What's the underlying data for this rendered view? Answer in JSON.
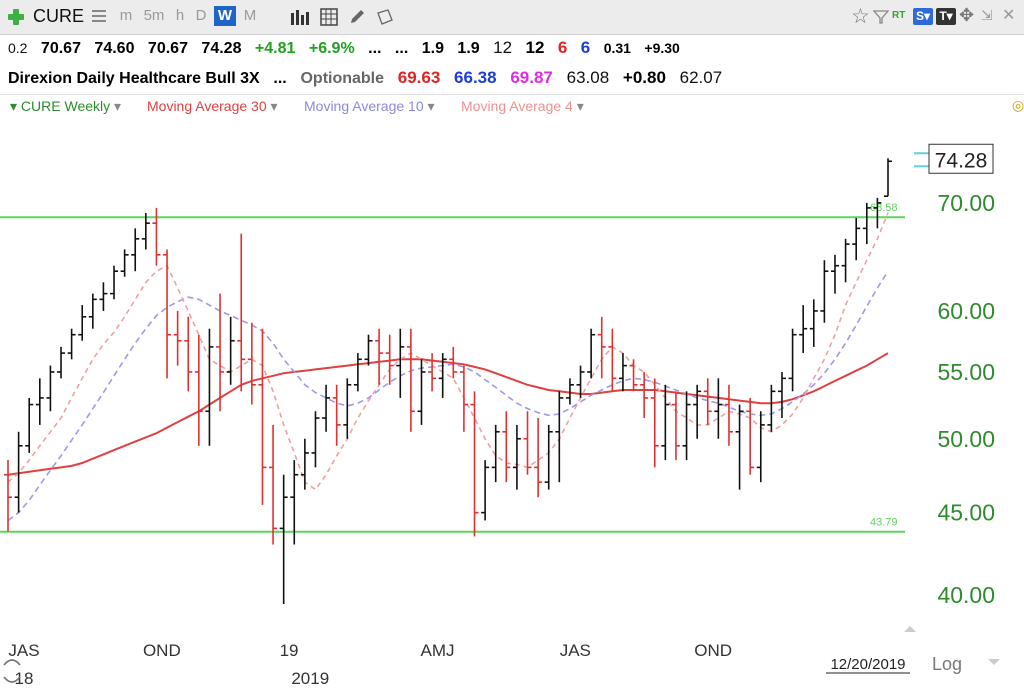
{
  "toolbar": {
    "symbol": "CURE",
    "intervals": [
      "m",
      "5m",
      "h",
      "D",
      "W",
      "M"
    ],
    "active_interval": "W",
    "rt_label": "RT"
  },
  "quote": {
    "prefix": "0.2",
    "open": "70.67",
    "high": "74.60",
    "low": "70.67",
    "close": "74.28",
    "change": "+4.81",
    "change_pct": "+6.9%",
    "dots1": "...",
    "dots2": "...",
    "v1": "1.9",
    "v2": "1.9",
    "v3": "12",
    "v4": "12",
    "v5": "6",
    "v6": "6",
    "v7": "0.31",
    "v8": "+9.30"
  },
  "info": {
    "name": "Direxion Daily Healthcare Bull 3X",
    "dots": "...",
    "optionable": "Optionable",
    "p1": "69.63",
    "p2": "66.38",
    "p3": "69.87",
    "p4": "63.08",
    "p5": "+0.80",
    "p6": "62.07"
  },
  "legend": {
    "series1": "CURE Weekly",
    "series2": "Moving Average 30",
    "series3": "Moving Average 10",
    "series4": "Moving Average 4"
  },
  "colors": {
    "up_bar": "#111111",
    "down_bar": "#e23030",
    "ma30": "#e04040",
    "ma10": "#9b9be8",
    "ma4": "#f0a0a0",
    "hline": "#5fd35f",
    "axis_text": "#2e8b2e"
  },
  "chart_data": {
    "type": "ohlc",
    "scale": "log",
    "ylim": [
      38.5,
      78
    ],
    "y_ticks": [
      40,
      45,
      50,
      55,
      60,
      70
    ],
    "y_tick_labels": [
      "40.00",
      "45.00",
      "50.00",
      "55.00",
      "60.00",
      "70.00"
    ],
    "last_price_label": "74.28",
    "x_labels": [
      {
        "label": "JAS",
        "bar": 0
      },
      {
        "label": "OND",
        "bar": 13
      },
      {
        "label": "19",
        "bar": 25
      },
      {
        "label": "AMJ",
        "bar": 39
      },
      {
        "label": "JAS",
        "bar": 52
      },
      {
        "label": "OND",
        "bar": 65
      }
    ],
    "year_labels": [
      {
        "label": "18",
        "bar": 0
      },
      {
        "label": "2019",
        "bar": 27
      }
    ],
    "date_label": "12/20/2019",
    "scale_label": "Log",
    "hlines": [
      {
        "value": 68.58,
        "label": "68.58"
      },
      {
        "value": 43.79,
        "label": "43.79"
      }
    ],
    "ohlc": [
      {
        "o": 47.5,
        "h": 48.5,
        "l": 43.8,
        "c": 46.0
      },
      {
        "o": 46.0,
        "h": 50.5,
        "l": 45.0,
        "c": 49.5
      },
      {
        "o": 49.5,
        "h": 53.0,
        "l": 49.0,
        "c": 52.5
      },
      {
        "o": 52.5,
        "h": 54.5,
        "l": 51.0,
        "c": 53.0
      },
      {
        "o": 53.0,
        "h": 55.5,
        "l": 52.0,
        "c": 55.0
      },
      {
        "o": 55.0,
        "h": 57.0,
        "l": 54.5,
        "c": 56.5
      },
      {
        "o": 56.5,
        "h": 58.5,
        "l": 56.0,
        "c": 58.0
      },
      {
        "o": 58.0,
        "h": 60.5,
        "l": 57.5,
        "c": 59.5
      },
      {
        "o": 59.5,
        "h": 61.5,
        "l": 58.5,
        "c": 61.0
      },
      {
        "o": 61.0,
        "h": 62.5,
        "l": 60.0,
        "c": 61.5
      },
      {
        "o": 61.5,
        "h": 64.0,
        "l": 61.0,
        "c": 63.5
      },
      {
        "o": 63.5,
        "h": 65.5,
        "l": 63.0,
        "c": 65.0
      },
      {
        "o": 65.0,
        "h": 67.5,
        "l": 63.5,
        "c": 66.5
      },
      {
        "o": 66.5,
        "h": 69.0,
        "l": 65.5,
        "c": 68.0
      },
      {
        "o": 68.0,
        "h": 69.5,
        "l": 64.0,
        "c": 65.0
      },
      {
        "o": 65.0,
        "h": 65.5,
        "l": 54.5,
        "c": 58.0
      },
      {
        "o": 58.0,
        "h": 60.0,
        "l": 55.5,
        "c": 57.5
      },
      {
        "o": 57.5,
        "h": 59.5,
        "l": 53.5,
        "c": 55.0
      },
      {
        "o": 55.0,
        "h": 58.0,
        "l": 49.5,
        "c": 52.0
      },
      {
        "o": 52.0,
        "h": 58.5,
        "l": 49.5,
        "c": 57.0
      },
      {
        "o": 57.0,
        "h": 61.5,
        "l": 52.0,
        "c": 55.0
      },
      {
        "o": 55.0,
        "h": 59.5,
        "l": 54.0,
        "c": 57.5
      },
      {
        "o": 57.5,
        "h": 67.0,
        "l": 53.5,
        "c": 56.0
      },
      {
        "o": 56.0,
        "h": 59.0,
        "l": 52.5,
        "c": 54.0
      },
      {
        "o": 54.0,
        "h": 58.5,
        "l": 45.5,
        "c": 48.0
      },
      {
        "o": 48.0,
        "h": 51.0,
        "l": 43.0,
        "c": 44.0
      },
      {
        "o": 44.0,
        "h": 47.5,
        "l": 39.5,
        "c": 46.0
      },
      {
        "o": 46.0,
        "h": 48.5,
        "l": 43.0,
        "c": 47.5
      },
      {
        "o": 47.5,
        "h": 50.0,
        "l": 46.5,
        "c": 49.0
      },
      {
        "o": 49.0,
        "h": 52.0,
        "l": 48.0,
        "c": 51.5
      },
      {
        "o": 51.5,
        "h": 54.0,
        "l": 50.5,
        "c": 53.0
      },
      {
        "o": 53.0,
        "h": 54.0,
        "l": 49.5,
        "c": 51.0
      },
      {
        "o": 51.0,
        "h": 54.5,
        "l": 50.0,
        "c": 54.0
      },
      {
        "o": 54.0,
        "h": 56.5,
        "l": 53.5,
        "c": 56.0
      },
      {
        "o": 56.0,
        "h": 58.0,
        "l": 55.5,
        "c": 57.5
      },
      {
        "o": 57.5,
        "h": 58.5,
        "l": 54.0,
        "c": 56.5
      },
      {
        "o": 56.5,
        "h": 58.0,
        "l": 54.0,
        "c": 55.5
      },
      {
        "o": 55.5,
        "h": 58.5,
        "l": 53.0,
        "c": 57.0
      },
      {
        "o": 57.0,
        "h": 58.5,
        "l": 50.5,
        "c": 52.0
      },
      {
        "o": 52.0,
        "h": 56.0,
        "l": 51.0,
        "c": 55.0
      },
      {
        "o": 55.0,
        "h": 56.5,
        "l": 53.5,
        "c": 54.5
      },
      {
        "o": 54.5,
        "h": 56.5,
        "l": 53.0,
        "c": 56.0
      },
      {
        "o": 56.0,
        "h": 57.0,
        "l": 54.5,
        "c": 55.0
      },
      {
        "o": 55.0,
        "h": 55.5,
        "l": 50.5,
        "c": 52.5
      },
      {
        "o": 52.5,
        "h": 53.5,
        "l": 43.5,
        "c": 45.0
      },
      {
        "o": 45.0,
        "h": 48.5,
        "l": 44.5,
        "c": 48.0
      },
      {
        "o": 48.0,
        "h": 51.0,
        "l": 47.0,
        "c": 50.5
      },
      {
        "o": 50.5,
        "h": 52.0,
        "l": 47.0,
        "c": 48.0
      },
      {
        "o": 48.0,
        "h": 51.0,
        "l": 46.5,
        "c": 50.0
      },
      {
        "o": 50.0,
        "h": 52.0,
        "l": 47.5,
        "c": 48.0
      },
      {
        "o": 48.0,
        "h": 51.5,
        "l": 46.0,
        "c": 47.0
      },
      {
        "o": 47.0,
        "h": 51.0,
        "l": 46.5,
        "c": 50.5
      },
      {
        "o": 50.5,
        "h": 53.5,
        "l": 47.0,
        "c": 53.0
      },
      {
        "o": 53.0,
        "h": 54.5,
        "l": 52.5,
        "c": 54.0
      },
      {
        "o": 54.0,
        "h": 55.5,
        "l": 53.0,
        "c": 55.0
      },
      {
        "o": 55.0,
        "h": 58.5,
        "l": 54.5,
        "c": 58.0
      },
      {
        "o": 58.0,
        "h": 59.5,
        "l": 54.5,
        "c": 57.0
      },
      {
        "o": 57.0,
        "h": 58.5,
        "l": 53.5,
        "c": 54.5
      },
      {
        "o": 54.5,
        "h": 56.5,
        "l": 53.5,
        "c": 55.5
      },
      {
        "o": 55.5,
        "h": 56.0,
        "l": 53.5,
        "c": 54.0
      },
      {
        "o": 54.0,
        "h": 55.0,
        "l": 51.5,
        "c": 53.0
      },
      {
        "o": 53.0,
        "h": 54.5,
        "l": 48.0,
        "c": 49.5
      },
      {
        "o": 49.5,
        "h": 54.0,
        "l": 48.5,
        "c": 52.5
      },
      {
        "o": 52.5,
        "h": 53.5,
        "l": 48.5,
        "c": 49.5
      },
      {
        "o": 49.5,
        "h": 53.5,
        "l": 48.5,
        "c": 52.5
      },
      {
        "o": 52.5,
        "h": 54.0,
        "l": 50.0,
        "c": 53.5
      },
      {
        "o": 53.5,
        "h": 54.5,
        "l": 51.0,
        "c": 52.0
      },
      {
        "o": 52.0,
        "h": 54.5,
        "l": 50.0,
        "c": 52.5
      },
      {
        "o": 52.5,
        "h": 54.0,
        "l": 49.5,
        "c": 50.5
      },
      {
        "o": 50.5,
        "h": 52.5,
        "l": 46.5,
        "c": 52.0
      },
      {
        "o": 52.0,
        "h": 53.0,
        "l": 47.5,
        "c": 48.0
      },
      {
        "o": 48.0,
        "h": 52.0,
        "l": 47.0,
        "c": 51.0
      },
      {
        "o": 51.0,
        "h": 54.0,
        "l": 50.5,
        "c": 53.5
      },
      {
        "o": 53.5,
        "h": 55.0,
        "l": 51.5,
        "c": 54.5
      },
      {
        "o": 54.5,
        "h": 58.5,
        "l": 53.5,
        "c": 58.0
      },
      {
        "o": 58.0,
        "h": 60.5,
        "l": 56.5,
        "c": 58.5
      },
      {
        "o": 58.5,
        "h": 61.0,
        "l": 57.0,
        "c": 60.0
      },
      {
        "o": 60.0,
        "h": 64.5,
        "l": 59.0,
        "c": 63.5
      },
      {
        "o": 63.5,
        "h": 65.0,
        "l": 61.5,
        "c": 64.0
      },
      {
        "o": 64.0,
        "h": 66.5,
        "l": 62.5,
        "c": 66.0
      },
      {
        "o": 66.0,
        "h": 68.5,
        "l": 64.5,
        "c": 67.5
      },
      {
        "o": 67.5,
        "h": 70.0,
        "l": 66.0,
        "c": 69.5
      },
      {
        "o": 69.5,
        "h": 70.5,
        "l": 67.5,
        "c": 70.0
      },
      {
        "o": 70.67,
        "h": 74.6,
        "l": 70.67,
        "c": 74.28
      }
    ],
    "ma30": [
      47.5,
      47.6,
      47.7,
      47.8,
      47.9,
      48.0,
      48.1,
      48.3,
      48.6,
      48.9,
      49.2,
      49.5,
      49.8,
      50.1,
      50.4,
      50.8,
      51.2,
      51.6,
      52.0,
      52.5,
      53.0,
      53.5,
      54.0,
      54.3,
      54.5,
      54.7,
      54.9,
      55.0,
      55.1,
      55.2,
      55.3,
      55.4,
      55.5,
      55.6,
      55.7,
      55.8,
      55.9,
      56.0,
      56.0,
      56.0,
      55.9,
      55.8,
      55.7,
      55.6,
      55.4,
      55.2,
      54.9,
      54.6,
      54.3,
      54.0,
      53.8,
      53.6,
      53.5,
      53.4,
      53.3,
      53.3,
      53.4,
      53.5,
      53.6,
      53.6,
      53.6,
      53.6,
      53.5,
      53.4,
      53.3,
      53.2,
      53.1,
      53.0,
      52.9,
      52.8,
      52.7,
      52.6,
      52.6,
      52.7,
      52.9,
      53.2,
      53.5,
      53.9,
      54.3,
      54.7,
      55.1,
      55.5,
      56.0,
      56.5
    ],
    "ma10": [
      44.5,
      45.0,
      45.8,
      46.8,
      47.8,
      48.8,
      49.9,
      51.0,
      52.2,
      53.4,
      54.7,
      56.0,
      57.3,
      58.5,
      59.6,
      60.3,
      60.8,
      61.2,
      61.0,
      60.5,
      60.0,
      59.6,
      59.2,
      58.8,
      58.3,
      57.3,
      56.0,
      55.0,
      54.0,
      53.4,
      53.0,
      52.6,
      52.4,
      52.6,
      53.0,
      53.6,
      54.2,
      54.7,
      55.1,
      55.3,
      55.4,
      55.5,
      55.6,
      55.4,
      55.0,
      54.4,
      53.8,
      53.2,
      52.6,
      52.2,
      51.9,
      51.7,
      51.8,
      52.2,
      52.7,
      53.2,
      53.6,
      54.0,
      54.3,
      54.5,
      54.4,
      54.2,
      53.9,
      53.6,
      53.3,
      53.0,
      52.8,
      52.6,
      52.3,
      52.0,
      51.8,
      51.7,
      51.8,
      52.2,
      52.7,
      53.3,
      54.0,
      54.9,
      56.0,
      57.3,
      58.8,
      60.4,
      62.0,
      63.5
    ],
    "ma4": [
      47.0,
      47.6,
      48.5,
      49.5,
      50.5,
      51.5,
      53.0,
      54.5,
      56.0,
      57.2,
      58.2,
      59.5,
      61.0,
      62.5,
      63.5,
      64.0,
      62.0,
      60.0,
      58.0,
      56.0,
      55.5,
      55.0,
      55.5,
      56.0,
      55.5,
      53.5,
      51.0,
      49.0,
      47.0,
      46.5,
      47.5,
      48.8,
      50.0,
      51.5,
      52.8,
      54.0,
      55.2,
      56.0,
      56.5,
      56.0,
      55.5,
      55.0,
      54.5,
      53.0,
      51.5,
      50.0,
      48.8,
      48.3,
      48.2,
      48.0,
      48.5,
      49.0,
      50.0,
      51.5,
      53.0,
      54.5,
      56.0,
      57.0,
      56.5,
      55.5,
      55.0,
      54.0,
      53.0,
      52.0,
      51.5,
      51.0,
      51.0,
      51.5,
      52.0,
      51.8,
      51.5,
      50.8,
      50.5,
      51.0,
      51.8,
      53.0,
      54.5,
      56.0,
      58.0,
      60.5,
      62.5,
      64.5,
      66.5,
      69.0
    ]
  }
}
